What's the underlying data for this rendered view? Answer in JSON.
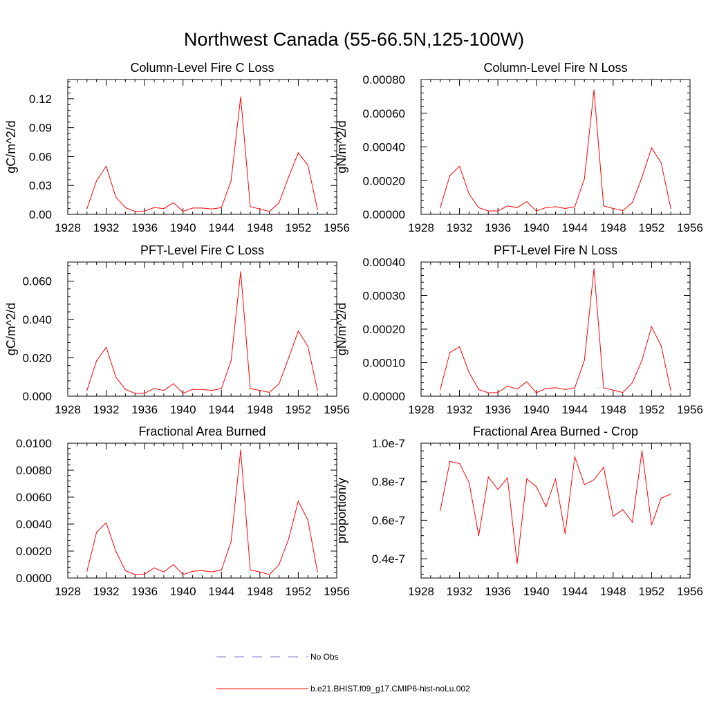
{
  "title": "Northwest Canada (55-66.5N,125-100W)",
  "legend": {
    "placement": "bottom-center",
    "entries": [
      {
        "label": "No Obs",
        "color": "#7d7dc8",
        "style": "dashed"
      },
      {
        "label": "b.e21.BHIST.f09_g17.CMIP6-hist-noLu.002",
        "color": "#ff0000",
        "style": "solid"
      }
    ]
  },
  "chart_data": [
    {
      "type": "line",
      "title": "Column-Level Fire C Loss",
      "xlabel": "",
      "ylabel": "gC/m^2/d",
      "xlim": [
        1928,
        1956
      ],
      "ylim": [
        0,
        0.14
      ],
      "xticks": [
        1928,
        1932,
        1936,
        1940,
        1944,
        1948,
        1952,
        1956
      ],
      "xtick_labels": [
        "1928",
        "1932",
        "1936",
        "1940",
        "1944",
        "1948",
        "1952",
        "1956"
      ],
      "yticks": [
        0,
        0.03,
        0.06,
        0.09,
        0.12
      ],
      "ytick_labels": [
        "0.00",
        "0.03",
        "0.06",
        "0.09",
        "0.12"
      ],
      "grid": false,
      "series": [
        {
          "name": "b.e21.BHIST.f09_g17.CMIP6-hist-noLu.002",
          "color": "#ff0000",
          "x": [
            1930,
            1931,
            1932,
            1933,
            1934,
            1935,
            1936,
            1937,
            1938,
            1939,
            1940,
            1941,
            1942,
            1943,
            1944,
            1945,
            1946,
            1947,
            1948,
            1949,
            1950,
            1951,
            1952,
            1953,
            1954
          ],
          "y": [
            0.006,
            0.035,
            0.05,
            0.018,
            0.007,
            0.003,
            0.0035,
            0.007,
            0.006,
            0.012,
            0.003,
            0.0065,
            0.0065,
            0.0055,
            0.007,
            0.035,
            0.122,
            0.008,
            0.0055,
            0.003,
            0.012,
            0.039,
            0.064,
            0.051,
            0.005
          ]
        }
      ]
    },
    {
      "type": "line",
      "title": "Column-Level Fire N Loss",
      "xlabel": "",
      "ylabel": "gN/m^2/d",
      "xlim": [
        1928,
        1956
      ],
      "ylim": [
        0,
        0.0008
      ],
      "xticks": [
        1928,
        1932,
        1936,
        1940,
        1944,
        1948,
        1952,
        1956
      ],
      "xtick_labels": [
        "1928",
        "1932",
        "1936",
        "1940",
        "1944",
        "1948",
        "1952",
        "1956"
      ],
      "yticks": [
        0,
        0.0002,
        0.0004,
        0.0006,
        0.0008
      ],
      "ytick_labels": [
        "0.00000",
        "0.00020",
        "0.00040",
        "0.00060",
        "0.00080"
      ],
      "grid": false,
      "series": [
        {
          "name": "b.e21.BHIST.f09_g17.CMIP6-hist-noLu.002",
          "color": "#ff0000",
          "x": [
            1930,
            1931,
            1932,
            1933,
            1934,
            1935,
            1936,
            1937,
            1938,
            1939,
            1940,
            1941,
            1942,
            1943,
            1944,
            1945,
            1946,
            1947,
            1948,
            1949,
            1950,
            1951,
            1952,
            1953,
            1954
          ],
          "y": [
            4e-05,
            0.00023,
            0.000285,
            0.00012,
            4e-05,
            2e-05,
            2e-05,
            5e-05,
            4e-05,
            7.5e-05,
            2e-05,
            4e-05,
            4.5e-05,
            3.5e-05,
            4.5e-05,
            0.00021,
            0.000738,
            5e-05,
            3.5e-05,
            2.2e-05,
            7e-05,
            0.00022,
            0.000395,
            0.000305,
            3.5e-05
          ]
        }
      ]
    },
    {
      "type": "line",
      "title": "PFT-Level Fire C Loss",
      "xlabel": "",
      "ylabel": "gC/m^2/d",
      "xlim": [
        1928,
        1956
      ],
      "ylim": [
        0,
        0.07
      ],
      "xticks": [
        1928,
        1932,
        1936,
        1940,
        1944,
        1948,
        1952,
        1956
      ],
      "xtick_labels": [
        "1928",
        "1932",
        "1936",
        "1940",
        "1944",
        "1948",
        "1952",
        "1956"
      ],
      "yticks": [
        0,
        0.02,
        0.04,
        0.06
      ],
      "ytick_labels": [
        "0.000",
        "0.020",
        "0.040",
        "0.060"
      ],
      "grid": false,
      "series": [
        {
          "name": "b.e21.BHIST.f09_g17.CMIP6-hist-noLu.002",
          "color": "#ff0000",
          "x": [
            1930,
            1931,
            1932,
            1933,
            1934,
            1935,
            1936,
            1937,
            1938,
            1939,
            1940,
            1941,
            1942,
            1943,
            1944,
            1945,
            1946,
            1947,
            1948,
            1949,
            1950,
            1951,
            1952,
            1953,
            1954
          ],
          "y": [
            0.003,
            0.0185,
            0.0255,
            0.01,
            0.0035,
            0.0015,
            0.0015,
            0.004,
            0.003,
            0.0065,
            0.0015,
            0.0035,
            0.0035,
            0.003,
            0.004,
            0.0185,
            0.065,
            0.004,
            0.003,
            0.002,
            0.0065,
            0.02,
            0.034,
            0.026,
            0.003
          ]
        }
      ]
    },
    {
      "type": "line",
      "title": "PFT-Level Fire N Loss",
      "xlabel": "",
      "ylabel": "gN/m^2/d",
      "xlim": [
        1928,
        1956
      ],
      "ylim": [
        0,
        0.0004
      ],
      "xticks": [
        1928,
        1932,
        1936,
        1940,
        1944,
        1948,
        1952,
        1956
      ],
      "xtick_labels": [
        "1928",
        "1932",
        "1936",
        "1940",
        "1944",
        "1948",
        "1952",
        "1956"
      ],
      "yticks": [
        0,
        0.0001,
        0.0002,
        0.0003,
        0.0004
      ],
      "ytick_labels": [
        "0.00000",
        "0.00010",
        "0.00020",
        "0.00030",
        "0.00040"
      ],
      "grid": false,
      "series": [
        {
          "name": "b.e21.BHIST.f09_g17.CMIP6-hist-noLu.002",
          "color": "#ff0000",
          "x": [
            1930,
            1931,
            1932,
            1933,
            1934,
            1935,
            1936,
            1937,
            1938,
            1939,
            1940,
            1941,
            1942,
            1943,
            1944,
            1945,
            1946,
            1947,
            1948,
            1949,
            1950,
            1951,
            1952,
            1953,
            1954
          ],
          "y": [
            2e-05,
            0.00013,
            0.000147,
            7e-05,
            2e-05,
            1e-05,
            1.1e-05,
            3e-05,
            2.1e-05,
            4.3e-05,
            1e-05,
            2.3e-05,
            2.5e-05,
            2e-05,
            2.5e-05,
            0.000107,
            0.00038,
            2.5e-05,
            1.8e-05,
            1.1e-05,
            4e-05,
            0.000107,
            0.000207,
            0.00015,
            1.7e-05
          ]
        }
      ]
    },
    {
      "type": "line",
      "title": "Fractional Area Burned",
      "xlabel": "",
      "ylabel": "",
      "xlim": [
        1928,
        1956
      ],
      "ylim": [
        0,
        0.01
      ],
      "xticks": [
        1928,
        1932,
        1936,
        1940,
        1944,
        1948,
        1952,
        1956
      ],
      "xtick_labels": [
        "1928",
        "1932",
        "1936",
        "1940",
        "1944",
        "1948",
        "1952",
        "1956"
      ],
      "yticks": [
        0,
        0.002,
        0.004,
        0.006,
        0.008,
        0.01
      ],
      "ytick_labels": [
        "0.0000",
        "0.0020",
        "0.0040",
        "0.0060",
        "0.0080",
        "0.0100"
      ],
      "grid": false,
      "series": [
        {
          "name": "b.e21.BHIST.f09_g17.CMIP6-hist-noLu.002",
          "color": "#ff0000",
          "x": [
            1930,
            1931,
            1932,
            1933,
            1934,
            1935,
            1936,
            1937,
            1938,
            1939,
            1940,
            1941,
            1942,
            1943,
            1944,
            1945,
            1946,
            1947,
            1948,
            1949,
            1950,
            1951,
            1952,
            1953,
            1954
          ],
          "y": [
            0.0005,
            0.0034,
            0.0041,
            0.002,
            0.00055,
            0.00025,
            0.0003,
            0.00075,
            0.00045,
            0.001,
            0.00025,
            0.0005,
            0.00055,
            0.00045,
            0.0006,
            0.0027,
            0.0095,
            0.0006,
            0.00045,
            0.00025,
            0.001,
            0.0029,
            0.0057,
            0.0043,
            0.00045
          ]
        }
      ]
    },
    {
      "type": "line",
      "title": "Fractional Area Burned - Crop",
      "xlabel": "",
      "ylabel": "proportion/y",
      "xlim": [
        1928,
        1956
      ],
      "ylim": [
        3e-08,
        1e-07
      ],
      "xticks": [
        1928,
        1932,
        1936,
        1940,
        1944,
        1948,
        1952,
        1956
      ],
      "xtick_labels": [
        "1928",
        "1932",
        "1936",
        "1940",
        "1944",
        "1948",
        "1952",
        "1956"
      ],
      "yticks": [
        4e-08,
        6e-08,
        8e-08,
        1e-07
      ],
      "ytick_labels": [
        "0.4e-7",
        "0.6e-7",
        "0.8e-7",
        "1.0e-7"
      ],
      "grid": false,
      "series": [
        {
          "name": "b.e21.BHIST.f09_g17.CMIP6-hist-noLu.002",
          "color": "#ff0000",
          "x": [
            1930,
            1931,
            1932,
            1933,
            1934,
            1935,
            1936,
            1937,
            1938,
            1939,
            1940,
            1941,
            1942,
            1943,
            1944,
            1945,
            1946,
            1947,
            1948,
            1949,
            1950,
            1951,
            1952,
            1953,
            1954
          ],
          "y": [
            6.5e-08,
            9.05e-08,
            8.95e-08,
            7.95e-08,
            5.2e-08,
            8.25e-08,
            7.6e-08,
            8.2e-08,
            3.75e-08,
            8.15e-08,
            7.75e-08,
            6.7e-08,
            8.15e-08,
            5.3e-08,
            9.3e-08,
            7.85e-08,
            8.1e-08,
            8.75e-08,
            6.2e-08,
            6.55e-08,
            5.9e-08,
            9.6e-08,
            5.75e-08,
            7.15e-08,
            7.35e-08
          ]
        }
      ]
    }
  ]
}
